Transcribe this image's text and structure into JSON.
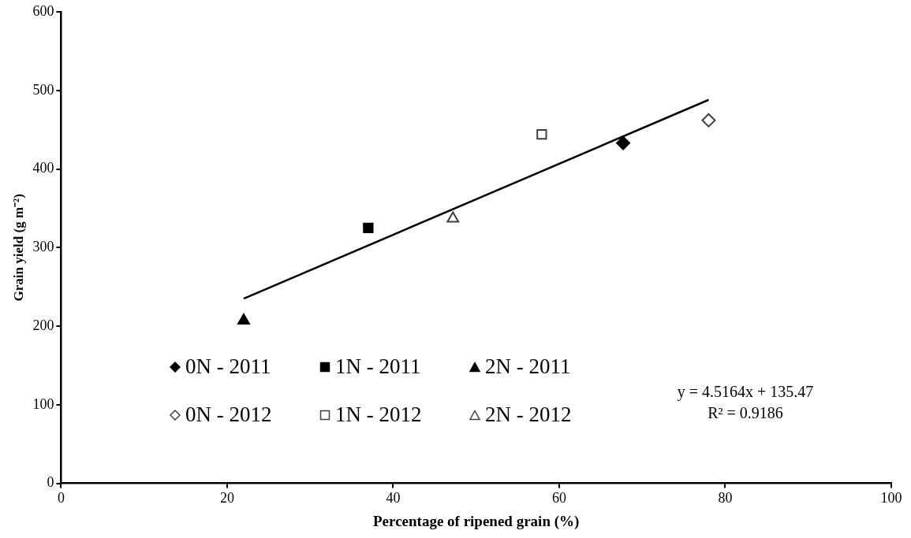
{
  "chart_data": {
    "type": "scatter",
    "xlabel": "Percentage of ripened grain (%)",
    "ylabel": "Grain yield (g m⁻²)",
    "xlim": [
      0,
      100
    ],
    "xticks": [
      0,
      20,
      40,
      60,
      80,
      100
    ],
    "ylim": [
      0,
      600
    ],
    "yticks": [
      0,
      100,
      200,
      300,
      400,
      500,
      600
    ],
    "grid": false,
    "legend": "bottom left",
    "series": [
      {
        "name": "0N - 2011",
        "color": "#000000",
        "marker": "diamond",
        "x": [
          67.7
        ],
        "values": [
          433
        ]
      },
      {
        "name": "1N - 2011",
        "color": "#000000",
        "marker": "square",
        "x": [
          37.0
        ],
        "values": [
          325
        ]
      },
      {
        "name": "2N - 2011",
        "color": "#000000",
        "marker": "triangle",
        "x": [
          22.0
        ],
        "values": [
          207
        ]
      },
      {
        "name": "0N - 2012",
        "color": "#ffffff",
        "marker": "diamond",
        "x": [
          78.0
        ],
        "values": [
          462
        ]
      },
      {
        "name": "1N - 2012",
        "color": "#ffffff",
        "marker": "square",
        "x": [
          57.9
        ],
        "values": [
          444
        ]
      },
      {
        "name": "2N - 2012",
        "color": "#ffffff",
        "marker": "triangle",
        "x": [
          47.2
        ],
        "values": [
          337
        ]
      },
      {
        "type": "line",
        "color": "#000000",
        "marker": "none",
        "x": [
          22,
          78
        ],
        "values": [
          235,
          488
        ]
      }
    ],
    "annotations": [
      "y = 4.5164x + 135.47",
      "R² = 0.9186"
    ]
  }
}
